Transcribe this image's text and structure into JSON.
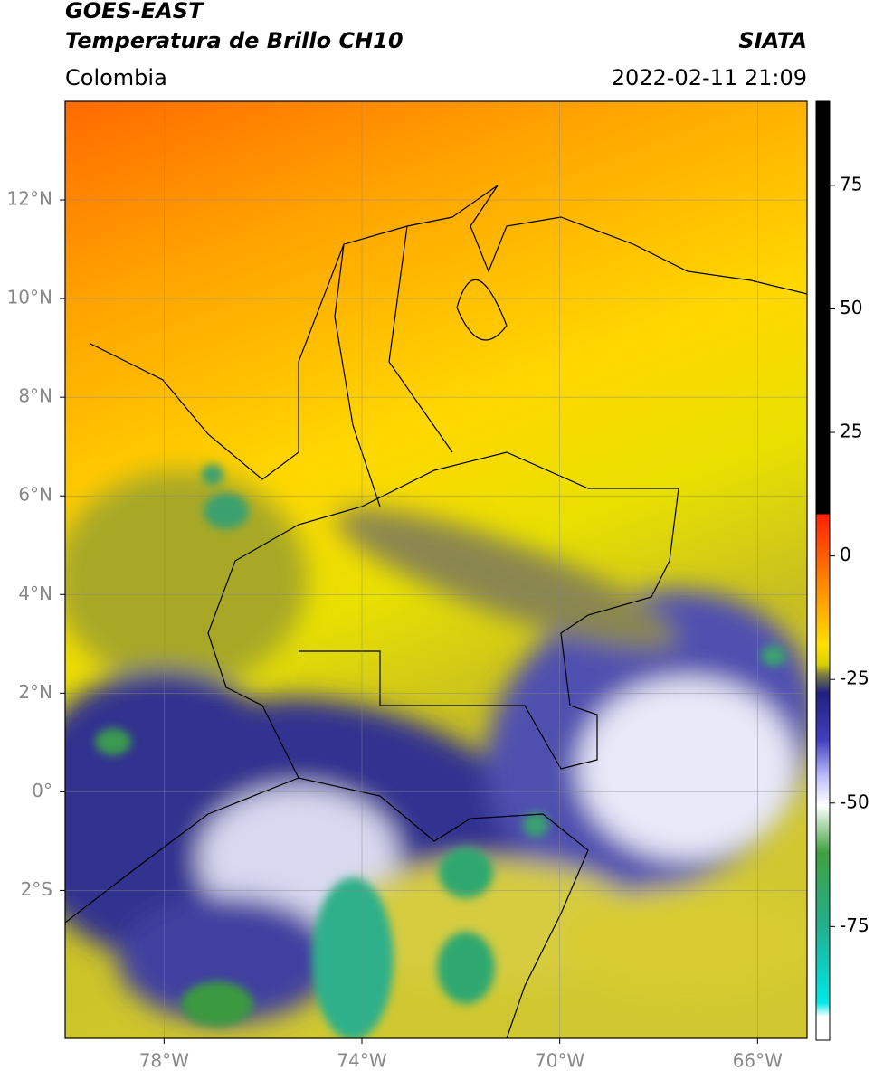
{
  "header": {
    "title": "GOES-EAST",
    "subtitle": "Temperatura de Brillo CH10",
    "region": "Colombia",
    "source": "SIATA",
    "datetime": "2022-02-11 21:09"
  },
  "map": {
    "lonlim": [
      -80,
      -65
    ],
    "latlim": [
      -5,
      14
    ],
    "lat_ticks": [
      {
        "value": 12,
        "label": "12°N"
      },
      {
        "value": 10,
        "label": "10°N"
      },
      {
        "value": 8,
        "label": "8°N"
      },
      {
        "value": 6,
        "label": "6°N"
      },
      {
        "value": 4,
        "label": "4°N"
      },
      {
        "value": 2,
        "label": "2°N"
      },
      {
        "value": 0,
        "label": "0°"
      },
      {
        "value": -2,
        "label": "2°S"
      }
    ],
    "lon_ticks": [
      {
        "value": -78,
        "label": "78°W"
      },
      {
        "value": -74,
        "label": "74°W"
      },
      {
        "value": -70,
        "label": "70°W"
      },
      {
        "value": -66,
        "label": "66°W"
      }
    ]
  },
  "colorbar": {
    "lim": [
      -98,
      92
    ],
    "ticks": [
      75,
      50,
      25,
      0,
      -25,
      -50,
      -75
    ]
  }
}
